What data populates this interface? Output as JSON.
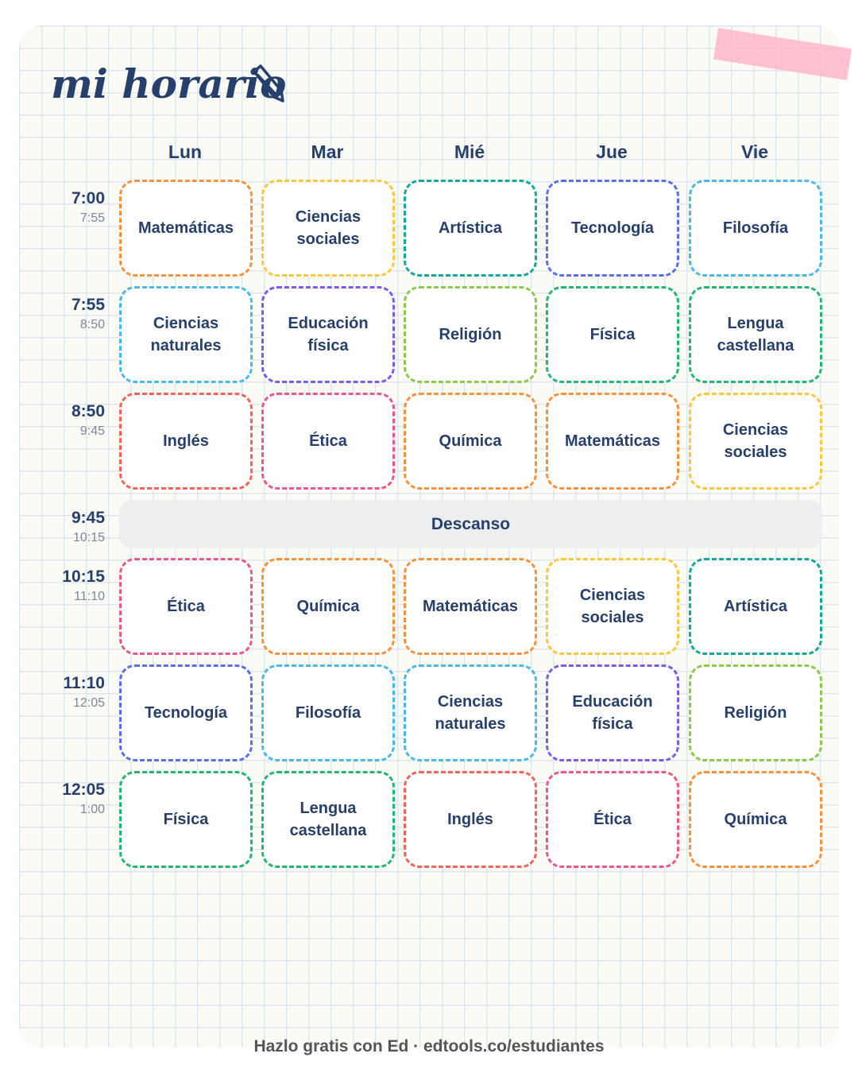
{
  "header": {
    "title": "mi horario"
  },
  "days": [
    "Lun",
    "Mar",
    "Mié",
    "Jue",
    "Vie"
  ],
  "rows": [
    {
      "start": "7:00",
      "end": "7:55",
      "cells": [
        {
          "subject": "Matemáticas",
          "color": "#f5923e"
        },
        {
          "subject": "Ciencias sociales",
          "color": "#f9c740"
        },
        {
          "subject": "Artística",
          "color": "#12a89a"
        },
        {
          "subject": "Tecnología",
          "color": "#5b6ee8"
        },
        {
          "subject": "Filosofía",
          "color": "#4cb8e8"
        }
      ]
    },
    {
      "start": "7:55",
      "end": "8:50",
      "cells": [
        {
          "subject": "Ciencias naturales",
          "color": "#4cb8e8"
        },
        {
          "subject": "Educación física",
          "color": "#7b5ce6"
        },
        {
          "subject": "Religión",
          "color": "#8cc84b"
        },
        {
          "subject": "Física",
          "color": "#22b573"
        },
        {
          "subject": "Lengua castellana",
          "color": "#22b573"
        }
      ]
    },
    {
      "start": "8:50",
      "end": "9:45",
      "cells": [
        {
          "subject": "Inglés",
          "color": "#f0645a"
        },
        {
          "subject": "Ética",
          "color": "#e8588a"
        },
        {
          "subject": "Química",
          "color": "#f5923e"
        },
        {
          "subject": "Matemáticas",
          "color": "#f5923e"
        },
        {
          "subject": "Ciencias sociales",
          "color": "#f9c740"
        }
      ]
    },
    {
      "start": "9:45",
      "end": "10:15",
      "break": "Descanso"
    },
    {
      "start": "10:15",
      "end": "11:10",
      "cells": [
        {
          "subject": "Ética",
          "color": "#e8588a"
        },
        {
          "subject": "Química",
          "color": "#f5923e"
        },
        {
          "subject": "Matemáticas",
          "color": "#f5923e"
        },
        {
          "subject": "Ciencias sociales",
          "color": "#f9c740"
        },
        {
          "subject": "Artística",
          "color": "#12a89a"
        }
      ]
    },
    {
      "start": "11:10",
      "end": "12:05",
      "cells": [
        {
          "subject": "Tecnología",
          "color": "#5b6ee8"
        },
        {
          "subject": "Filosofía",
          "color": "#4cb8e8"
        },
        {
          "subject": "Ciencias naturales",
          "color": "#4cb8e8"
        },
        {
          "subject": "Educación física",
          "color": "#7b5ce6"
        },
        {
          "subject": "Religión",
          "color": "#8cc84b"
        }
      ]
    },
    {
      "start": "12:05",
      "end": "1:00",
      "cells": [
        {
          "subject": "Física",
          "color": "#22b573"
        },
        {
          "subject": "Lengua castellana",
          "color": "#22b573"
        },
        {
          "subject": "Inglés",
          "color": "#f0645a"
        },
        {
          "subject": "Ética",
          "color": "#e8588a"
        },
        {
          "subject": "Química",
          "color": "#f5923e"
        }
      ]
    }
  ],
  "footer": "Hazlo gratis con Ed · edtools.co/estudiantes"
}
